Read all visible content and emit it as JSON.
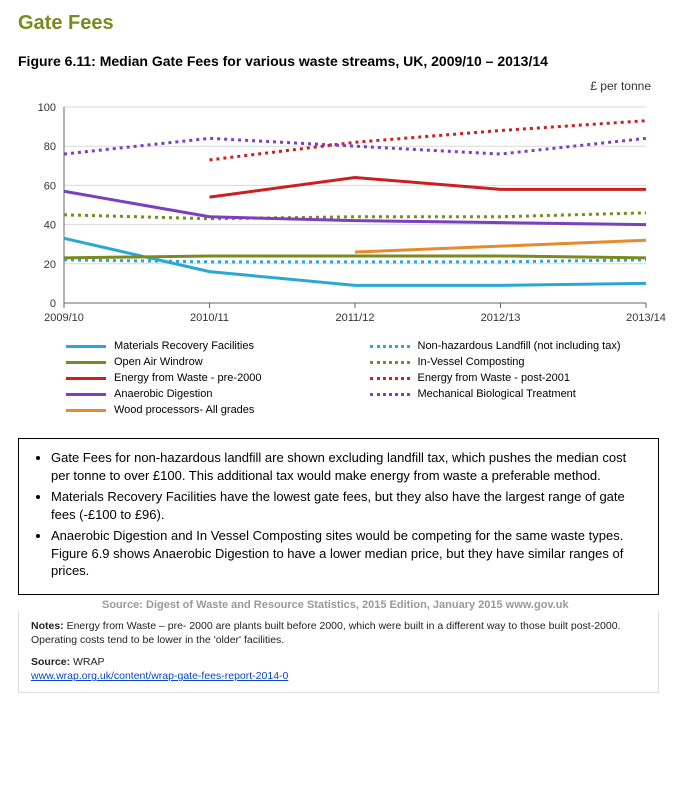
{
  "section_title": "Gate Fees",
  "figure_title": "Figure 6.11: Median Gate Fees for various waste streams, UK, 2009/10 – 2013/14",
  "y_unit": "£ per tonne",
  "chart": {
    "type": "line",
    "categories": [
      "2009/10",
      "2010/11",
      "2011/12",
      "2012/13",
      "2013/14"
    ],
    "ylim": [
      0,
      100
    ],
    "ytick_step": 20,
    "grid_color": "#d9d9d9",
    "axis_color": "#666666",
    "tick_font_size": 11,
    "plot_bg": "#ffffff",
    "series": [
      {
        "key": "mrf",
        "label": "Materials Recovery Facilities",
        "color": "#2aa7d6",
        "dash": "",
        "width": 3,
        "values": [
          33,
          16,
          9,
          9,
          10
        ]
      },
      {
        "key": "landfill",
        "label": "Non-hazardous Landfill (not including tax)",
        "color": "#2aa7d6",
        "dash": "3,4",
        "width": 3,
        "values": [
          22,
          21,
          21,
          21,
          22
        ]
      },
      {
        "key": "windrow",
        "label": "Open Air Windrow",
        "color": "#7a8a1f",
        "dash": "",
        "width": 3,
        "values": [
          23,
          24,
          24,
          24,
          23
        ]
      },
      {
        "key": "ivc",
        "label": "In-Vessel Composting",
        "color": "#7a8a1f",
        "dash": "3,4",
        "width": 3,
        "values": [
          45,
          43,
          44,
          44,
          46
        ]
      },
      {
        "key": "efw_pre",
        "label": "Energy from Waste - pre-2000",
        "color": "#cc1f1f",
        "dash": "",
        "width": 3,
        "values": [
          null,
          54,
          64,
          58,
          58
        ]
      },
      {
        "key": "efw_post",
        "label": "Energy from Waste - post-2001",
        "color": "#cc1f1f",
        "dash": "3,4",
        "width": 3,
        "values": [
          null,
          73,
          82,
          88,
          93
        ]
      },
      {
        "key": "ad",
        "label": "Anaerobic Digestion",
        "color": "#7b3fbf",
        "dash": "",
        "width": 3,
        "values": [
          57,
          44,
          42,
          41,
          40
        ]
      },
      {
        "key": "mbt",
        "label": "Mechanical Biological Treatment",
        "color": "#7b3fbf",
        "dash": "3,4",
        "width": 3,
        "values": [
          76,
          84,
          80,
          76,
          84
        ]
      },
      {
        "key": "wood",
        "label": "Wood processors- All grades",
        "color": "#e68a2e",
        "dash": "",
        "width": 3,
        "values": [
          null,
          null,
          26,
          29,
          32
        ]
      }
    ]
  },
  "info_bullets": [
    "Gate Fees for non-hazardous landfill are shown excluding landfill tax, which pushes the median cost per tonne to over £100.  This additional tax would make energy from waste a preferable method.",
    "Materials Recovery Facilities have the lowest gate fees, but they also have the largest range of gate fees (-£100 to £96).",
    "Anaerobic Digestion and In Vessel Composting sites would be competing for the same waste types.  Figure 6.9 shows Anaerobic Digestion to have a lower median price, but they have similar ranges of prices."
  ],
  "source_line": "Source: Digest of Waste and Resource Statistics, 2015 Edition, January 2015 www.gov.uk",
  "notes": {
    "notes_label": "Notes:",
    "notes_text": " Energy from Waste – pre- 2000 are plants built before 2000, which were built in a different way to those built post-2000.  Operating costs tend to be lower in the 'older' facilities.",
    "source_label": "Source:",
    "source_text": " WRAP",
    "link": "www.wrap.org.uk/content/wrap-gate-fees-report-2014-0"
  }
}
